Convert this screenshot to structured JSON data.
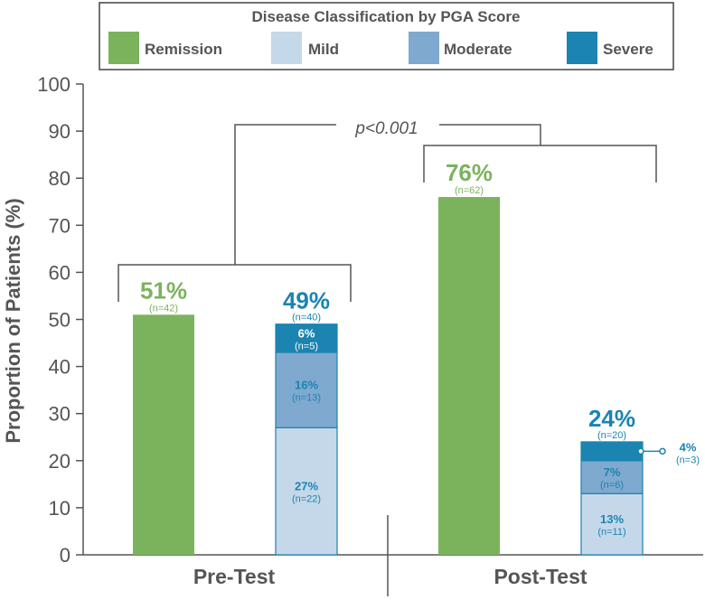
{
  "chart_data": {
    "type": "bar",
    "title": "Disease Classification by PGA Score",
    "ylabel": "Proportion of Patients (%)",
    "ylim": [
      0,
      100
    ],
    "yticks": [
      0,
      10,
      20,
      30,
      40,
      50,
      60,
      70,
      80,
      90,
      100
    ],
    "groups": [
      "Pre-Test",
      "Post-Test"
    ],
    "legend": [
      {
        "name": "Remission",
        "color": "#7bb35c"
      },
      {
        "name": "Mild",
        "color": "#c5d8ea"
      },
      {
        "name": "Moderate",
        "color": "#7fa9cf"
      },
      {
        "name": "Severe",
        "color": "#1b84b0"
      }
    ],
    "bars": [
      {
        "group": "Pre-Test",
        "kind": "Remission",
        "total_label": "51%",
        "n_label": "(n=42)",
        "value": 51
      },
      {
        "group": "Pre-Test",
        "kind": "Disease",
        "total_label": "49%",
        "n_label": "(n=40)",
        "segments": [
          {
            "name": "Mild",
            "value": 27,
            "label": "27%",
            "n": "(n=22)"
          },
          {
            "name": "Moderate",
            "value": 16,
            "label": "16%",
            "n": "(n=13)"
          },
          {
            "name": "Severe",
            "value": 6,
            "label": "6%",
            "n": "(n=5)"
          }
        ]
      },
      {
        "group": "Post-Test",
        "kind": "Remission",
        "total_label": "76%",
        "n_label": "(n=62)",
        "value": 76
      },
      {
        "group": "Post-Test",
        "kind": "Disease",
        "total_label": "24%",
        "n_label": "(n=20)",
        "segments": [
          {
            "name": "Mild",
            "value": 13,
            "label": "13%",
            "n": "(n=11)"
          },
          {
            "name": "Moderate",
            "value": 7,
            "label": "7%",
            "n": "(n=6)"
          },
          {
            "name": "Severe",
            "value": 4,
            "label": "4%",
            "n": "(n=3)"
          }
        ]
      }
    ],
    "annotation": "p<0.001",
    "colors": {
      "remission_label": "#7bb35c",
      "disease_label": "#1b84b0",
      "axis": "#555555",
      "text": "#555555",
      "bar_edge": "#1b84b0"
    }
  }
}
